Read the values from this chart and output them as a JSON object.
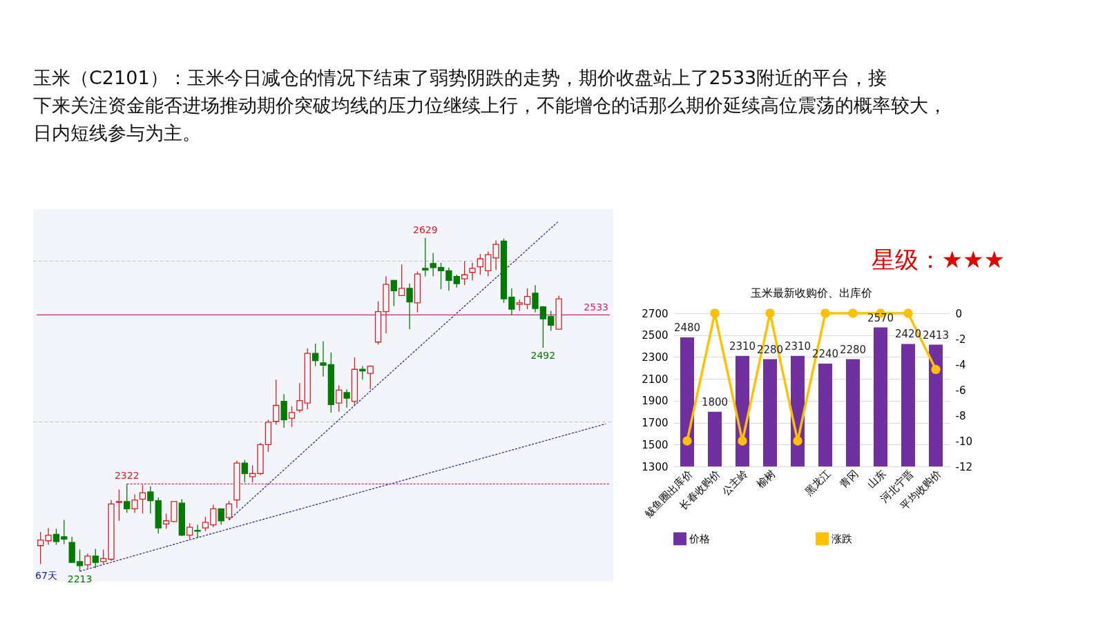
{
  "chart_data": [
    {
      "type": "candlestick",
      "title": "玉米（C2101）：玉米今日减仓的情况下结束了弱势阴跌的走势，期价收盘站上了2533附近的平台，接下来关注资金能否进场推动期价突破均线的压力位继续上行，不能增仓的话那么期价延续高位震荡的概率较大，日内短线参与为主。",
      "categories": [
        null,
        null,
        null,
        null,
        null,
        null,
        null,
        null,
        null,
        null,
        null,
        null,
        null,
        null,
        null,
        null,
        null,
        null,
        null,
        null,
        null,
        null,
        null,
        null,
        null,
        null,
        null,
        null,
        null,
        null,
        null,
        null,
        null,
        null,
        null,
        null,
        null,
        null,
        null,
        null,
        null,
        null,
        null,
        null,
        null,
        null,
        null,
        null,
        null,
        null,
        null,
        null,
        null,
        null,
        null,
        null,
        null,
        null,
        null,
        null,
        null,
        null,
        null,
        null,
        null,
        null,
        null,
        null,
        null,
        null,
        null,
        null,
        null
      ],
      "ohlc": [
        [
          2245,
          2262,
          2222,
          2252
        ],
        [
          2251,
          2267,
          2246,
          2258
        ],
        [
          2259,
          2266,
          2246,
          2250
        ],
        [
          2256,
          2277,
          2247,
          2253
        ],
        [
          2249,
          2256,
          2223,
          2224
        ],
        [
          2225,
          2240,
          2213,
          2220
        ],
        [
          2221,
          2235,
          2217,
          2232
        ],
        [
          2232,
          2241,
          2217,
          2224
        ],
        [
          2225,
          2240,
          2222,
          2229
        ],
        [
          2228,
          2302,
          2226,
          2297
        ],
        [
          2299,
          2315,
          2276,
          2300
        ],
        [
          2300,
          2322,
          2286,
          2291
        ],
        [
          2291,
          2309,
          2286,
          2302
        ],
        [
          2303,
          2321,
          2285,
          2311
        ],
        [
          2312,
          2319,
          2285,
          2301
        ],
        [
          2301,
          2305,
          2260,
          2267
        ],
        [
          2272,
          2285,
          2266,
          2276
        ],
        [
          2275,
          2300,
          2274,
          2300
        ],
        [
          2298,
          2303,
          2257,
          2258
        ],
        [
          2258,
          2273,
          2253,
          2268
        ],
        [
          2264,
          2271,
          2255,
          2263
        ],
        [
          2267,
          2281,
          2263,
          2274
        ],
        [
          2271,
          2296,
          2268,
          2291
        ],
        [
          2291,
          2291,
          2271,
          2276
        ],
        [
          2280,
          2301,
          2277,
          2297
        ],
        [
          2302,
          2351,
          2292,
          2348
        ],
        [
          2348,
          2352,
          2324,
          2335
        ],
        [
          2331,
          2345,
          2324,
          2335
        ],
        [
          2335,
          2373,
          2333,
          2371
        ],
        [
          2371,
          2402,
          2362,
          2399
        ],
        [
          2400,
          2452,
          2396,
          2420
        ],
        [
          2425,
          2434,
          2392,
          2402
        ],
        [
          2404,
          2419,
          2393,
          2411
        ],
        [
          2414,
          2448,
          2411,
          2426
        ],
        [
          2423,
          2491,
          2415,
          2485
        ],
        [
          2485,
          2497,
          2469,
          2476
        ],
        [
          2473,
          2500,
          2456,
          2470
        ],
        [
          2471,
          2486,
          2411,
          2421
        ],
        [
          2423,
          2445,
          2412,
          2439
        ],
        [
          2436,
          2440,
          2417,
          2429
        ],
        [
          2425,
          2480,
          2420,
          2465
        ],
        [
          2465,
          2469,
          2452,
          2463
        ],
        [
          2460,
          2470,
          2440,
          2469
        ],
        [
          2499,
          2550,
          2496,
          2537
        ],
        [
          2537,
          2581,
          2510,
          2571
        ],
        [
          2576,
          2576,
          2544,
          2563
        ],
        [
          2557,
          2596,
          2557,
          2566
        ],
        [
          2566,
          2572,
          2515,
          2549
        ],
        [
          2548,
          2587,
          2536,
          2584
        ],
        [
          2591,
          2629,
          2581,
          2589
        ],
        [
          2597,
          2610,
          2581,
          2592
        ],
        [
          2592,
          2598,
          2565,
          2588
        ],
        [
          2588,
          2592,
          2563,
          2576
        ],
        [
          2581,
          2583,
          2567,
          2572
        ],
        [
          2578,
          2600,
          2570,
          2583
        ],
        [
          2586,
          2598,
          2576,
          2591
        ],
        [
          2593,
          2609,
          2583,
          2603
        ],
        [
          2588,
          2612,
          2581,
          2608
        ],
        [
          2604,
          2626,
          2589,
          2621
        ],
        [
          2625,
          2628,
          2548,
          2553
        ],
        [
          2555,
          2566,
          2533,
          2540
        ],
        [
          2546,
          2552,
          2538,
          2548
        ],
        [
          2546,
          2566,
          2540,
          2556
        ],
        [
          2560,
          2570,
          2536,
          2541
        ],
        [
          2543,
          2544,
          2492,
          2528
        ],
        [
          2531,
          2538,
          2513,
          2520
        ],
        [
          2515,
          2557,
          2515,
          2553
        ],
        null,
        null,
        null,
        null,
        null,
        null
      ],
      "ylim": [
        2200,
        2665
      ],
      "yticks": [
        {
          "value": 2400,
          "label": null
        },
        {
          "value": 2600,
          "label": null
        }
      ],
      "grid": "y",
      "tick_labels": false,
      "series": [
        {
          "type": "line",
          "color": "#1c1c8a",
          "line_style": "dashed",
          "values": [
            null,
            null,
            null,
            null,
            null,
            2213,
            null,
            null,
            null,
            null,
            null,
            null,
            null,
            null,
            null,
            null,
            null,
            null,
            null,
            null,
            2255,
            null,
            null,
            null,
            null,
            null,
            null,
            null,
            null,
            null,
            null,
            null,
            null,
            null,
            null,
            null,
            null,
            null,
            null,
            null,
            null,
            null,
            null,
            null,
            null,
            null,
            null,
            null,
            null,
            null,
            null,
            null,
            null,
            null,
            null,
            null,
            null,
            null,
            null,
            null,
            null,
            null,
            null,
            null,
            null,
            null,
            null,
            null,
            null,
            null,
            null,
            null,
            2397
          ]
        },
        {
          "type": "line",
          "color": "#1c1c8a",
          "line_style": "dashed",
          "values": [
            null,
            null,
            null,
            null,
            null,
            null,
            null,
            null,
            null,
            null,
            null,
            null,
            null,
            null,
            null,
            null,
            null,
            null,
            null,
            null,
            null,
            null,
            null,
            null,
            2277,
            null,
            null,
            null,
            null,
            null,
            null,
            null,
            null,
            null,
            null,
            null,
            null,
            null,
            null,
            null,
            2420,
            null,
            null,
            null,
            null,
            null,
            null,
            null,
            null,
            null,
            null,
            null,
            null,
            null,
            null,
            null,
            null,
            null,
            null,
            null,
            null,
            null,
            null,
            null,
            null,
            null,
            2650,
            null,
            null,
            null,
            null,
            null,
            null
          ]
        }
      ],
      "ref_lines": [
        {
          "axis": "y",
          "value": 2533,
          "label": "2533",
          "color": "#d0207a",
          "line_style": "solid"
        },
        {
          "axis": "y",
          "value": 2322,
          "label": "2322",
          "color": "#d0207a",
          "line_style": "dashed"
        }
      ],
      "annotations": [
        {
          "text": "2629",
          "y": 2629
        },
        {
          "text": "2213",
          "y": 2213
        },
        {
          "text": "2492",
          "y": 2492
        },
        "67天"
      ]
    },
    {
      "type": "bar",
      "title": "玉米最新收购价、出库价",
      "annotations": [
        "星级：★★★"
      ],
      "categories": [
        "鲅鱼圈出库价",
        "长春收购价",
        "公主岭",
        "榆树",
        null,
        "黑龙江",
        "青冈",
        "山东",
        "河北宁晋",
        "平均收购价"
      ],
      "series": [
        {
          "name": "价格",
          "type": "bar",
          "color": "#7030a0",
          "values": [
            2480,
            1800,
            2310,
            2280,
            2310,
            2240,
            2280,
            2570,
            2420,
            2413
          ],
          "value_labels": [
            "2480",
            "1800",
            "2310",
            "2280",
            "2310",
            "2240",
            "2280",
            "2570",
            "2420",
            "2413"
          ]
        },
        {
          "name": "涨跌",
          "type": "line",
          "axis": "y2",
          "color": "#ffc000",
          "values": [
            -10,
            0,
            -10,
            0,
            -10,
            0,
            0,
            0,
            0,
            -4.4
          ]
        }
      ],
      "ylim": [
        1300,
        2700
      ],
      "yticks": [
        1300,
        1500,
        1700,
        1900,
        2100,
        2300,
        2500,
        2700
      ],
      "y2lim": [
        -12,
        0
      ],
      "y2ticks": [
        -12,
        -10,
        -8,
        -6,
        -4,
        -2,
        0
      ],
      "grid": "y",
      "legend": "bottom",
      "marker": "circle"
    }
  ]
}
